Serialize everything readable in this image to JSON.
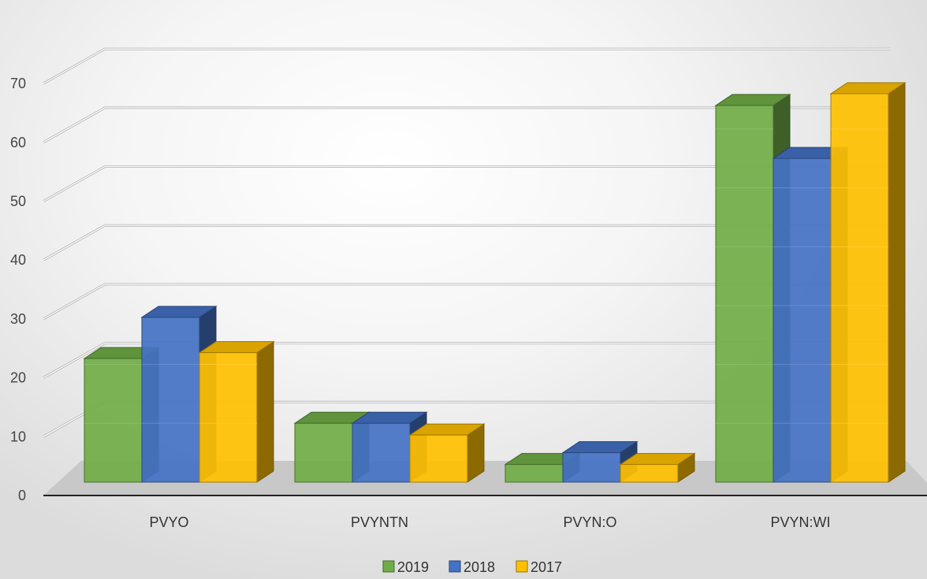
{
  "chart_data": {
    "type": "bar",
    "title": "",
    "xlabel": "",
    "ylabel": "",
    "ylim": [
      0,
      70
    ],
    "yticks": [
      0,
      10,
      20,
      30,
      40,
      50,
      60,
      70
    ],
    "categories": [
      "PVYO",
      "PVYNTN",
      "PVYN:O",
      "PVYN:WI"
    ],
    "series": [
      {
        "name": "2019",
        "values": [
          21,
          10,
          3,
          64
        ],
        "color": "#70ad47"
      },
      {
        "name": "2018",
        "values": [
          28,
          10,
          5,
          55
        ],
        "color": "#4472c4"
      },
      {
        "name": "2017",
        "values": [
          22,
          8,
          3,
          66
        ],
        "color": "#ffc000"
      }
    ],
    "grid": true,
    "legend_position": "bottom",
    "style": "3d-clustered-column"
  }
}
